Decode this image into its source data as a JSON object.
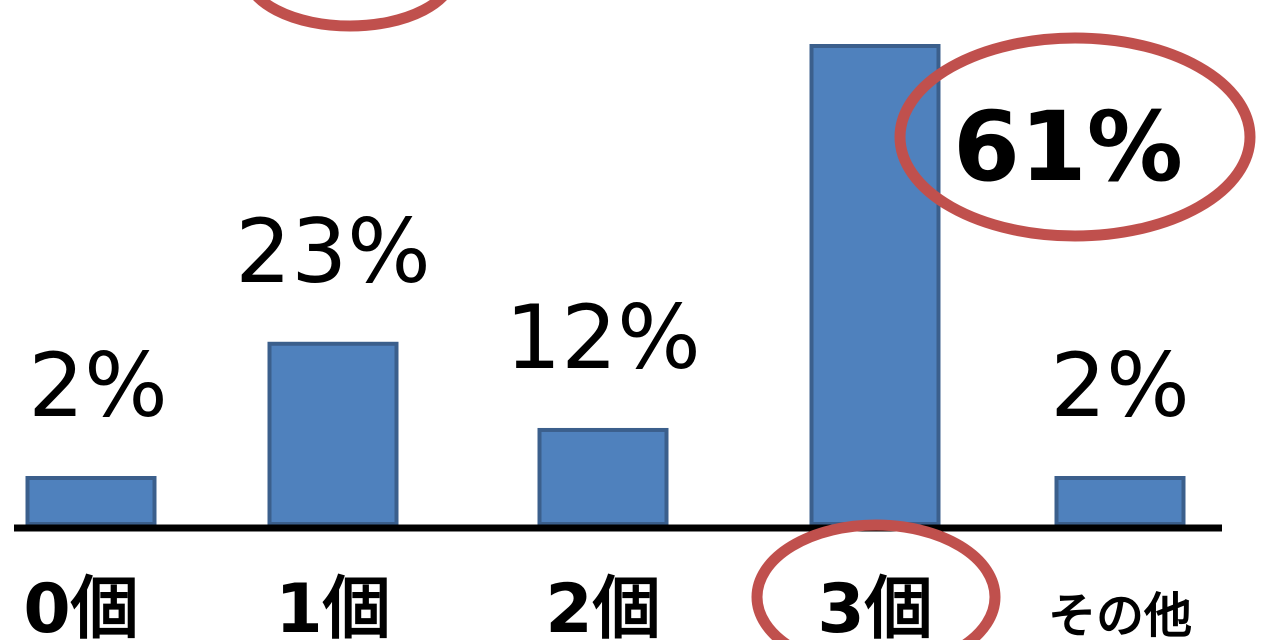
{
  "chart_data": {
    "type": "bar",
    "title": "",
    "xlabel": "",
    "ylabel": "",
    "categories": [
      "0個",
      "1個",
      "2個",
      "3個",
      "その他"
    ],
    "values": [
      2,
      23,
      12,
      61,
      2
    ],
    "value_labels": [
      "2%",
      "23%",
      "12%",
      "61%",
      "2%"
    ],
    "ylim": [
      0,
      61
    ],
    "grid": false,
    "legend": "none",
    "highlight_index": 3,
    "colors": {
      "bar_fill": "#4f81bd",
      "bar_stroke": "#3b5f8c",
      "axis": "#000000",
      "highlight_ring": "#c0504d",
      "highlight_ring_stroke": "#9b3b39"
    }
  }
}
